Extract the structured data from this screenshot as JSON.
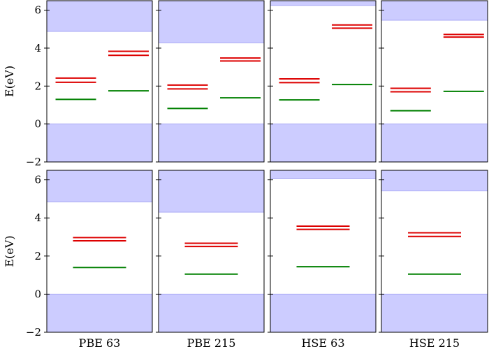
{
  "chart_data": {
    "type": "bar",
    "ylabel": "E(eV)",
    "ylim": [
      -2,
      6.5
    ],
    "yticks": [
      -2,
      0,
      2,
      4,
      6
    ],
    "ytick_labels": [
      "−2",
      "0",
      "2",
      "4",
      "6"
    ],
    "columns": [
      "PBE 63",
      "PBE 215",
      "HSE 63",
      "HSE 215"
    ],
    "colors": {
      "band": "#ccccff",
      "band_edge": "#a9a9f5",
      "occupied": "#dd0000",
      "empty": "#008000",
      "frame": "#000000"
    },
    "grid": false,
    "panels": [
      {
        "row": 0,
        "col": 0,
        "cbm": 4.88,
        "red": [
          [
            0.55,
            2.2
          ],
          [
            0.55,
            2.42
          ],
          [
            1.55,
            3.62
          ],
          [
            1.55,
            3.83
          ]
        ],
        "green": [
          [
            0.55,
            1.3
          ],
          [
            1.55,
            1.75
          ]
        ]
      },
      {
        "row": 0,
        "col": 1,
        "cbm": 4.28,
        "red": [
          [
            0.55,
            1.85
          ],
          [
            0.55,
            2.05
          ],
          [
            1.55,
            3.32
          ],
          [
            1.55,
            3.48
          ]
        ],
        "green": [
          [
            0.55,
            0.82
          ],
          [
            1.55,
            1.38
          ]
        ]
      },
      {
        "row": 0,
        "col": 2,
        "cbm": 6.25,
        "red": [
          [
            0.55,
            2.18
          ],
          [
            0.55,
            2.38
          ],
          [
            1.55,
            5.05
          ],
          [
            1.55,
            5.22
          ]
        ],
        "green": [
          [
            0.55,
            1.27
          ],
          [
            1.55,
            2.08
          ]
        ]
      },
      {
        "row": 0,
        "col": 3,
        "cbm": 5.47,
        "red": [
          [
            0.55,
            1.7
          ],
          [
            0.55,
            1.88
          ],
          [
            1.55,
            4.58
          ],
          [
            1.55,
            4.72
          ]
        ],
        "green": [
          [
            0.55,
            0.7
          ],
          [
            1.55,
            1.72
          ]
        ]
      },
      {
        "row": 1,
        "col": 0,
        "cbm": 4.85,
        "red": [
          [
            1.0,
            2.8
          ],
          [
            1.0,
            2.97
          ]
        ],
        "green": [
          [
            1.0,
            1.4
          ]
        ]
      },
      {
        "row": 1,
        "col": 1,
        "cbm": 4.3,
        "red": [
          [
            1.0,
            2.5
          ],
          [
            1.0,
            2.67
          ]
        ],
        "green": [
          [
            1.0,
            1.05
          ]
        ]
      },
      {
        "row": 1,
        "col": 2,
        "cbm": 6.08,
        "red": [
          [
            1.0,
            3.4
          ],
          [
            1.0,
            3.57
          ]
        ],
        "green": [
          [
            1.0,
            1.44
          ]
        ]
      },
      {
        "row": 1,
        "col": 3,
        "cbm": 5.42,
        "red": [
          [
            1.0,
            3.03
          ],
          [
            1.0,
            3.22
          ]
        ],
        "green": [
          [
            1.0,
            1.05
          ]
        ]
      }
    ]
  }
}
